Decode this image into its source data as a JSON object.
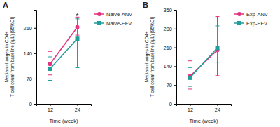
{
  "chart_data": [
    {
      "type": "line",
      "title": "A",
      "x_label": "Time (week)",
      "y_label": "Median changes in CD4+\nT cell count from baseline (/μL) [95%CI]",
      "x": [
        12,
        24
      ],
      "xlim": [
        6,
        30
      ],
      "xticks": [
        12,
        24
      ],
      "ylim": [
        0,
        260
      ],
      "yticks": [
        0,
        70,
        140,
        210
      ],
      "grid": false,
      "legend": "top-right",
      "series": [
        {
          "name": "Naive-ANV",
          "color": "#e5307e",
          "marker": "circle",
          "values": [
            110,
            212
          ],
          "lower": [
            80,
            190
          ],
          "upper": [
            145,
            240
          ]
        },
        {
          "name": "Naive-EFV",
          "color": "#1f9e9b",
          "marker": "square",
          "values": [
            97,
            180
          ],
          "lower": [
            65,
            100
          ],
          "upper": [
            130,
            235
          ]
        }
      ],
      "annotations": [
        {
          "text": "*",
          "x": 24,
          "y": 243
        }
      ]
    },
    {
      "type": "line",
      "title": "B",
      "x_label": "Time (week)",
      "y_label": "Median changes in CD4+\nT cell count from baseline (/μL) [95%CI]",
      "x": [
        12,
        24
      ],
      "xlim": [
        6,
        30
      ],
      "xticks": [
        12,
        24
      ],
      "ylim": [
        0,
        350
      ],
      "yticks": [
        0,
        70,
        140,
        210,
        280,
        350
      ],
      "grid": false,
      "legend": "top-right",
      "series": [
        {
          "name": "Exp-ANV",
          "color": "#e5307e",
          "marker": "circle",
          "values": [
            103,
            200
          ],
          "lower": [
            55,
            105
          ],
          "upper": [
            160,
            325
          ]
        },
        {
          "name": "Exp-EFV",
          "color": "#1f9e9b",
          "marker": "square",
          "values": [
            97,
            208
          ],
          "lower": [
            65,
            155
          ],
          "upper": [
            135,
            290
          ]
        }
      ]
    }
  ]
}
